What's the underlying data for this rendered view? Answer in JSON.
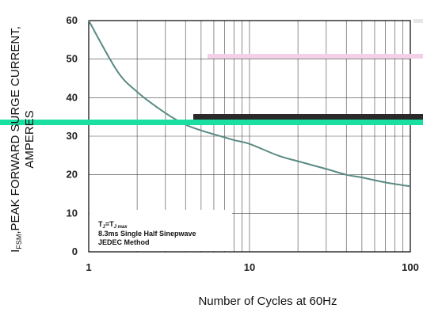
{
  "chart_data": {
    "type": "line",
    "xscale": "log",
    "xlim": [
      1,
      100
    ],
    "ylim": [
      0,
      60
    ],
    "x_ticks": [
      "1",
      "10",
      "100"
    ],
    "y_ticks": [
      "0",
      "10",
      "20",
      "30",
      "40",
      "50",
      "60"
    ],
    "xlabel": "Number of Cycles at 60Hz",
    "ylabel_line1": "I",
    "ylabel_sub": "FSM",
    "ylabel_rest": ",PEAK FORWARD SURGE CURRENT,",
    "ylabel_line2": "AMPERES",
    "grid": true,
    "series": [
      {
        "color": "#5b8a84",
        "x": [
          1,
          1.5,
          2,
          3,
          4,
          5,
          6,
          8,
          10,
          15,
          20,
          30,
          40,
          50,
          70,
          100
        ],
        "y": [
          60,
          47,
          41.5,
          36,
          33,
          31.5,
          30.5,
          29,
          28,
          25,
          23.5,
          21.5,
          20,
          19.3,
          18,
          17
        ]
      }
    ],
    "annotation": {
      "line1_main": "T",
      "line1_sub": "J",
      "line1_mid": "=T",
      "line1_sub2": "J max",
      "line2": "8.3ms Single Half  Sinepwave",
      "line3": "JEDEC Method"
    }
  }
}
